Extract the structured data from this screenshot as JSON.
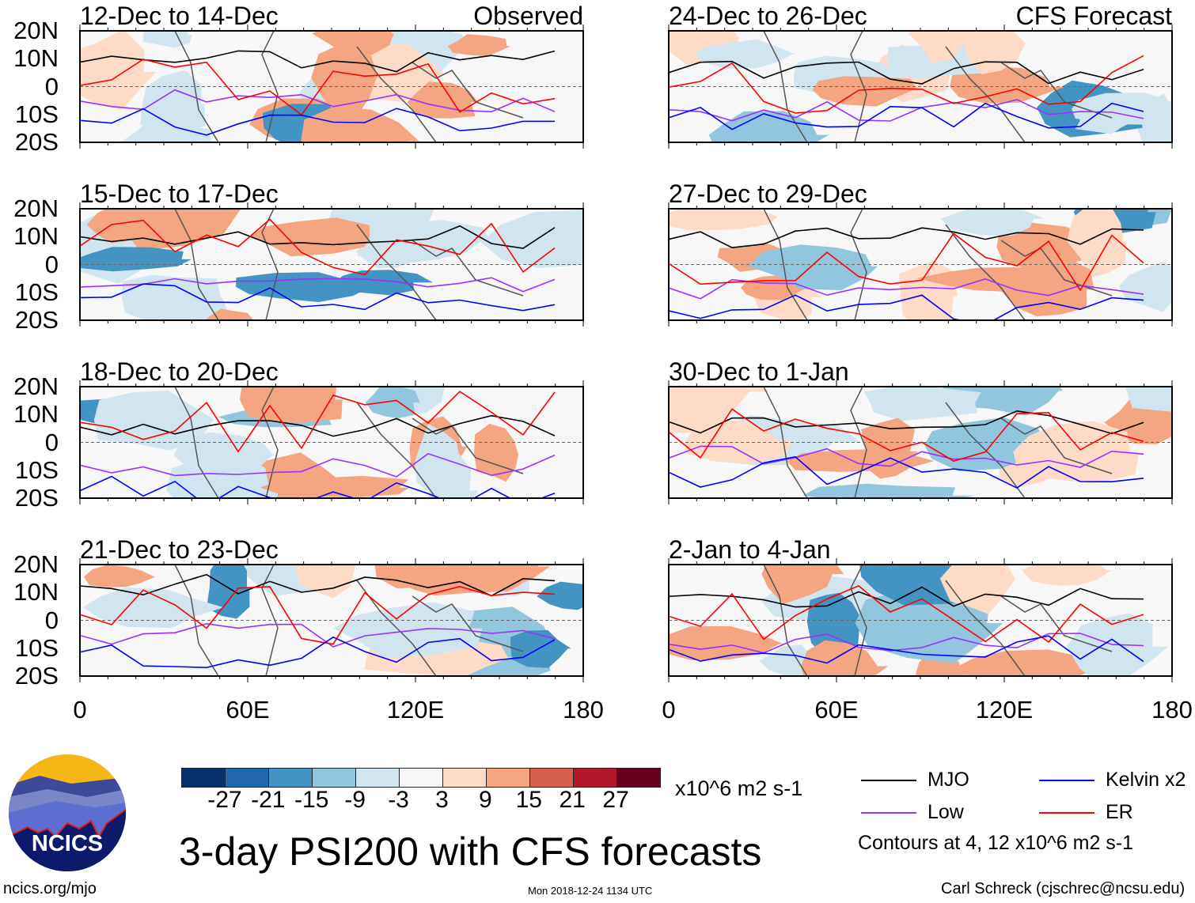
{
  "axes": {
    "lat_labels": [
      "20N",
      "10N",
      "0",
      "10S",
      "20S"
    ],
    "lon_labels": [
      "0",
      "60E",
      "120E",
      "180"
    ]
  },
  "panels": {
    "left": [
      {
        "title": "12-Dec to 14-Dec",
        "tag": "Observed"
      },
      {
        "title": "15-Dec to 17-Dec",
        "tag": ""
      },
      {
        "title": "18-Dec to 20-Dec",
        "tag": ""
      },
      {
        "title": "21-Dec to 23-Dec",
        "tag": ""
      }
    ],
    "right": [
      {
        "title": "24-Dec to 26-Dec",
        "tag": "CFS Forecast"
      },
      {
        "title": "27-Dec to 29-Dec",
        "tag": ""
      },
      {
        "title": "30-Dec to 1-Jan",
        "tag": ""
      },
      {
        "title": "2-Jan to 4-Jan",
        "tag": ""
      }
    ]
  },
  "colorbar": {
    "colors": [
      "#08306b",
      "#2166ac",
      "#4393c3",
      "#92c5de",
      "#d1e5f0",
      "#f7f7f7",
      "#fddbc7",
      "#f4a582",
      "#d6604d",
      "#b2182b",
      "#67001f"
    ],
    "ticks": [
      "-27",
      "-21",
      "-15",
      "-9",
      "-3",
      "3",
      "9",
      "15",
      "21",
      "27"
    ],
    "units": "x10^6 m2 s-1"
  },
  "legend": {
    "items": [
      {
        "label": "MJO",
        "color": "#000000"
      },
      {
        "label": "Kelvin x2",
        "color": "#0000ff"
      },
      {
        "label": "Low",
        "color": "#9b30ff"
      },
      {
        "label": "ER",
        "color": "#ff0000"
      }
    ],
    "note": "Contours at 4, 12 x10^6 m2 s-1"
  },
  "title": "3-day PSI200 with CFS forecasts",
  "footer": {
    "url": "ncics.org/mjo",
    "timestamp": "Mon 2018-12-24 1134 UTC",
    "credit": "Carl Schreck (cjschrec@ncsu.edu)"
  },
  "logo": {
    "text": "NCICS"
  }
}
